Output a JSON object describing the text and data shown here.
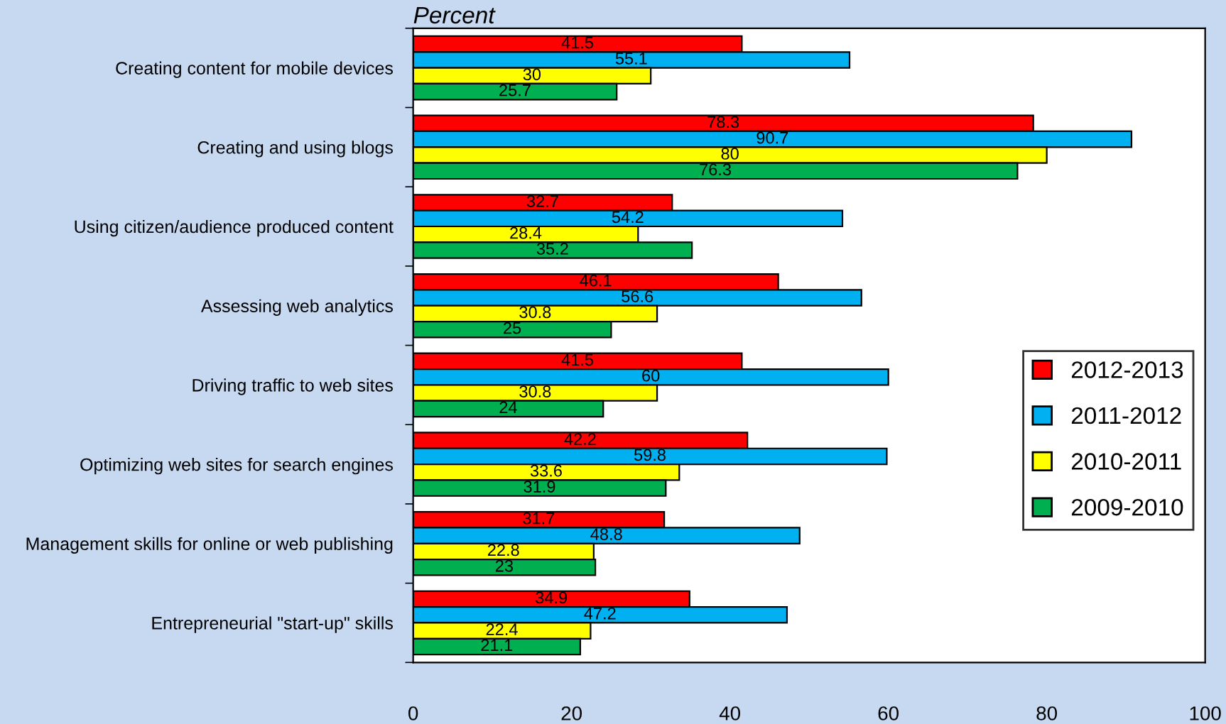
{
  "chart_data": {
    "type": "bar",
    "orientation": "horizontal",
    "title": "Percent",
    "categories": [
      "Creating content for mobile devices",
      "Creating and using blogs",
      "Using citizen/audience produced content",
      "Assessing web analytics",
      "Driving traffic to web sites",
      "Optimizing web sites for search engines",
      "Management skills for online or web publishing",
      "Entrepreneurial \"start-up\" skills"
    ],
    "series": [
      {
        "name": "2012-2013",
        "color": "#ff0000",
        "values": [
          41.5,
          78.3,
          32.7,
          46.1,
          41.5,
          42.2,
          31.7,
          34.9
        ]
      },
      {
        "name": "2011-2012",
        "color": "#00b0f0",
        "values": [
          55.1,
          90.7,
          54.2,
          56.6,
          60,
          59.8,
          48.8,
          47.2
        ]
      },
      {
        "name": "2010-2011",
        "color": "#ffff00",
        "values": [
          30,
          80,
          28.4,
          30.8,
          30.8,
          33.6,
          22.8,
          22.4
        ]
      },
      {
        "name": "2009-2010",
        "color": "#00b050",
        "values": [
          25.7,
          76.3,
          35.2,
          25,
          24,
          31.9,
          23,
          21.1
        ]
      }
    ],
    "xlim": [
      0,
      100
    ],
    "xticks": [
      0,
      20,
      40,
      60,
      80,
      100
    ],
    "data_labels": true,
    "legend": "right",
    "grid": false
  }
}
